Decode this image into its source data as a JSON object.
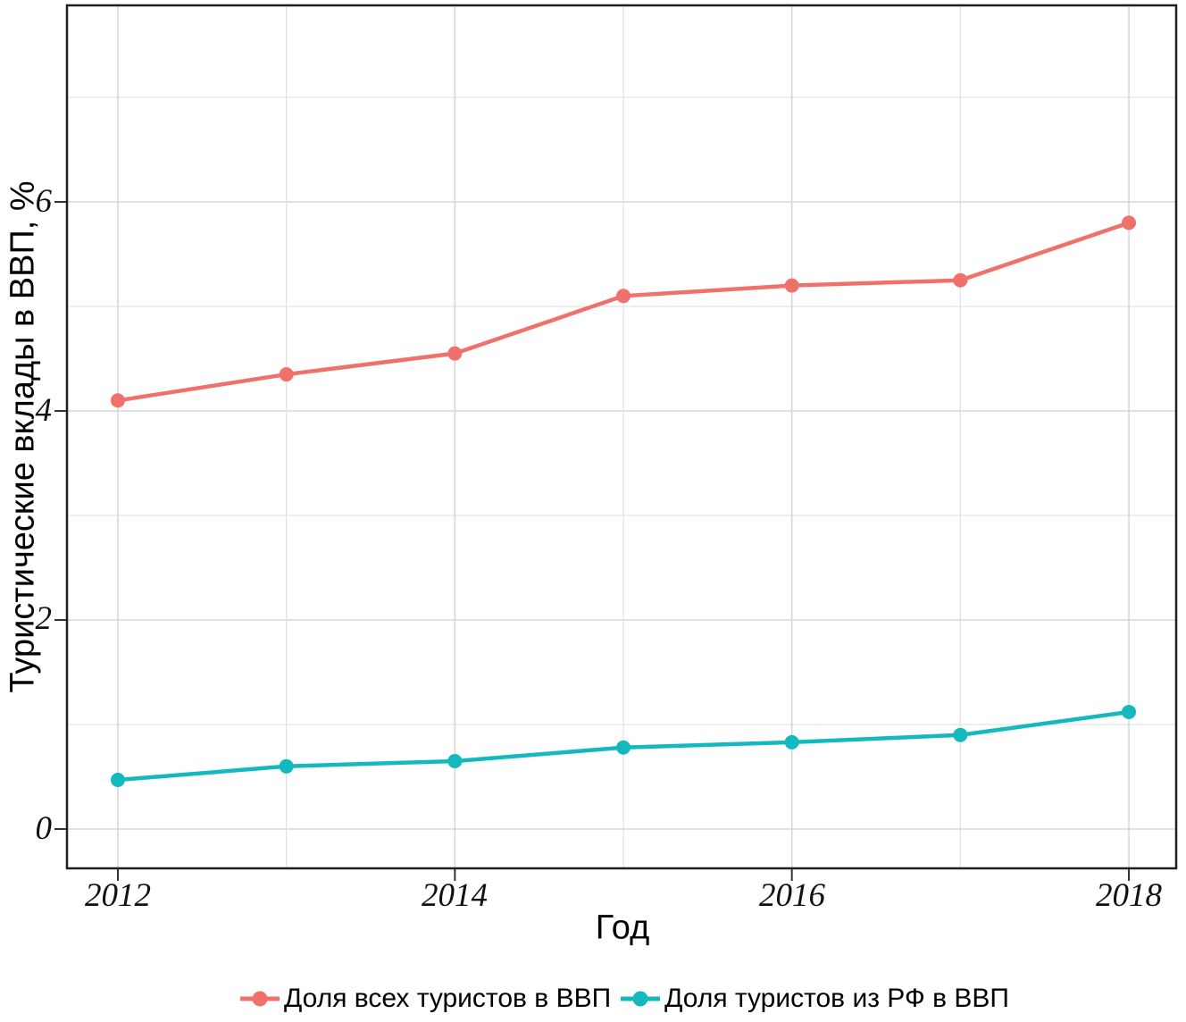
{
  "chart_data": {
    "type": "line",
    "title": "",
    "xlabel": "Год",
    "ylabel": "Туристические вклады в ВВП, %",
    "x": [
      2012,
      2013,
      2014,
      2015,
      2016,
      2017,
      2018
    ],
    "series": [
      {
        "name": "Доля всех туристов в ВВП",
        "color": "#f0716c",
        "values": [
          4.1,
          4.35,
          4.55,
          5.1,
          5.2,
          5.25,
          5.8
        ]
      },
      {
        "name": "Доля туристов из РФ в ВВП",
        "color": "#14b9be",
        "values": [
          0.47,
          0.6,
          0.65,
          0.78,
          0.83,
          0.9,
          1.12
        ]
      }
    ],
    "x_ticks": [
      "2012",
      "2014",
      "2016",
      "2018"
    ],
    "y_ticks": [
      "0",
      "2",
      "4",
      "6"
    ],
    "xlim": [
      2011.7,
      2018.3
    ],
    "ylim": [
      -0.38,
      7.88
    ],
    "grid": "on",
    "gridline_interval": {
      "x": 1,
      "y": 1
    },
    "legend_position": "bottom-center",
    "marker": "circle",
    "colors": {
      "series_1": "#f0716c",
      "series_2": "#14b9be",
      "grid_major": "#d7d7d7",
      "grid_minor": "#e3e3e3",
      "panel_border": "#1f1f1f",
      "text": "#111111"
    }
  }
}
